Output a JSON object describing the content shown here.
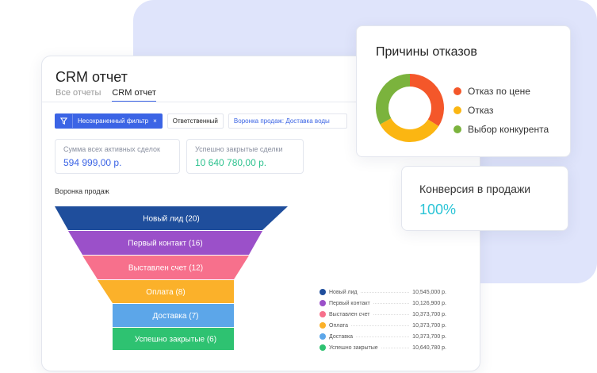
{
  "report": {
    "title": "CRM отчет",
    "tabs": [
      "Все отчеты",
      "CRM отчет"
    ],
    "filters": {
      "unsaved": "Несохраненный фильтр",
      "close": "×",
      "responsible": "Ответственный",
      "pipeline": "Воронка продаж: Доставка воды"
    },
    "stats": [
      {
        "label": "Сумма всех активных сделок",
        "value": "594 999,00 р.",
        "color": "#3b64e5"
      },
      {
        "label": "Успешно закрытые сделки",
        "value": "10 640 780,00 р.",
        "color": "#2ec28f"
      }
    ],
    "funnel_title": "Воронка продаж",
    "funnel": [
      {
        "label": "Новый лид  (20)",
        "name": "Новый лид",
        "count": 20,
        "amount": "10,545,000 р.",
        "color": "#1f4e9c"
      },
      {
        "label": "Первый контакт  (16)",
        "name": "Первый контакт",
        "count": 16,
        "amount": "10,126,900 р.",
        "color": "#9b50c9"
      },
      {
        "label": "Выставлен счет  (12)",
        "name": "Выставлен счет",
        "count": 12,
        "amount": "10,373,700 р.",
        "color": "#f7708c"
      },
      {
        "label": "Оплата  (8)",
        "name": "Оплата",
        "count": 8,
        "amount": "10,373,700 р.",
        "color": "#fbb12a"
      },
      {
        "label": "Доставка  (7)",
        "name": "Доставка",
        "count": 7,
        "amount": "10,373,700 р.",
        "color": "#5ca6e9"
      },
      {
        "label": "Успешно закрытые  (6)",
        "name": "Успешно закрытые",
        "count": 6,
        "amount": "10,640,780 р.",
        "color": "#2ec271"
      }
    ]
  },
  "reasons": {
    "title": "Причины отказов",
    "items": [
      {
        "label": "Отказ по цене",
        "color": "#f4572a",
        "share": 34
      },
      {
        "label": "Отказ",
        "color": "#fbb612",
        "share": 33
      },
      {
        "label": "Выбор конкурента",
        "color": "#7bb33d",
        "share": 33
      }
    ]
  },
  "conversion": {
    "label": "Конверсия в продажи",
    "value": "100%"
  }
}
